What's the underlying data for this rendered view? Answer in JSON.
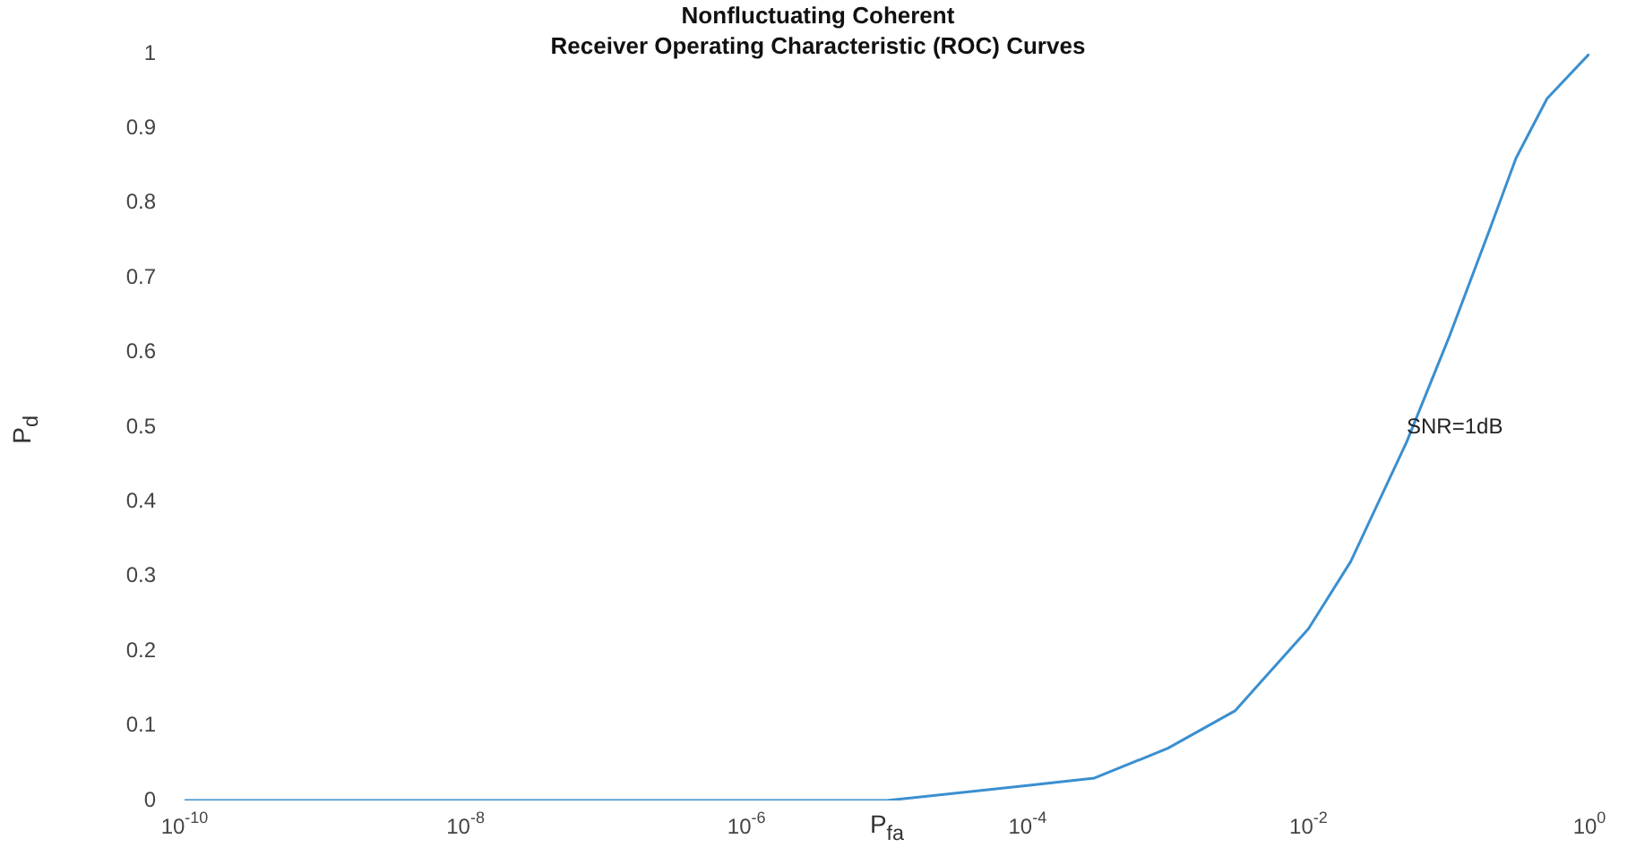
{
  "chart_data": {
    "type": "line",
    "title": "Nonfluctuating Coherent\nReceiver Operating Characteristic (ROC) Curves",
    "xlabel": "P$_{fa}$",
    "ylabel": "P$_{d}$",
    "log": "x",
    "marker": "none",
    "line_style": "solid",
    "x": [
      1e-10,
      1e-08,
      1e-06,
      1e-05,
      0.0001,
      0.0003,
      0.001,
      0.003,
      0.01,
      0.02,
      0.05,
      0.1,
      0.2,
      0.3,
      0.5,
      1
    ],
    "series": [
      {
        "color": "#3a8fd0",
        "values": [
          0,
          0,
          0,
          0,
          0.02,
          0.03,
          0.07,
          0.12,
          0.23,
          0.32,
          0.48,
          0.62,
          0.77,
          0.86,
          0.94,
          1
        ]
      }
    ],
    "xlim": [
      1e-10,
      1
    ],
    "ylim": [
      0,
      1
    ],
    "xticks": [
      {
        "value": 1e-10,
        "label": "10$^{-10}$"
      },
      {
        "value": 1e-08,
        "label": "10$^{-8}$"
      },
      {
        "value": 1e-06,
        "label": "10$^{-6}$"
      },
      {
        "value": 0.0001,
        "label": "10$^{-4}$"
      },
      {
        "value": 0.01,
        "label": "10$^{-2}$"
      },
      {
        "value": 1,
        "label": "10$^{0}$"
      }
    ],
    "yticks": [
      0,
      0.1,
      0.2,
      0.3,
      0.4,
      0.5,
      0.6,
      0.7,
      0.8,
      0.9,
      1
    ],
    "annotations": [
      {
        "text": "SNR=1dB",
        "x": 0.05,
        "y": 0.5
      }
    ]
  }
}
